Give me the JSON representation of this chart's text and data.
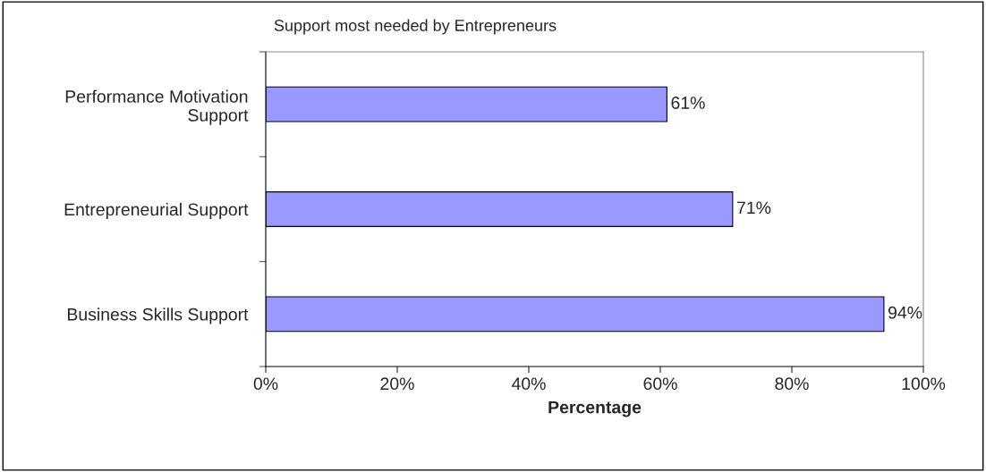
{
  "chart_data": {
    "type": "bar",
    "orientation": "horizontal",
    "title": "Support most needed by Entrepreneurs",
    "xlabel": "Percentage",
    "categories": [
      "Performance Motivation\nSupport",
      "Entrepreneurial Support",
      "Business Skills Support"
    ],
    "values": [
      61,
      71,
      94
    ],
    "value_labels": [
      "61%",
      "71%",
      "94%"
    ],
    "color": "#9999ff",
    "xlim": [
      0,
      100
    ],
    "xticks": [
      {
        "value": 0,
        "label": "0%"
      },
      {
        "value": 20,
        "label": "20%"
      },
      {
        "value": 40,
        "label": "40%"
      },
      {
        "value": 60,
        "label": "60%"
      },
      {
        "value": 80,
        "label": "80%"
      },
      {
        "value": 100,
        "label": "100%"
      }
    ],
    "grid": false,
    "legend": false
  }
}
